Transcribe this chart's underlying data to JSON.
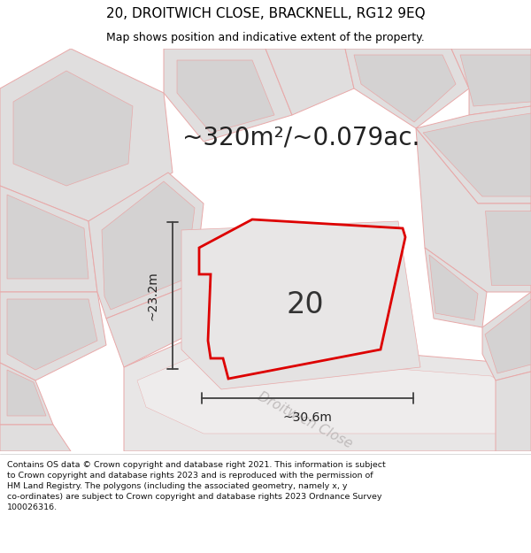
{
  "title_line1": "20, DROITWICH CLOSE, BRACKNELL, RG12 9EQ",
  "title_line2": "Map shows position and indicative extent of the property.",
  "area_text": "~320m²/~0.079ac.",
  "label_number": "20",
  "dim_width": "~30.6m",
  "dim_height": "~23.2m",
  "street_name": "Droitwich Close",
  "footer_lines": [
    "Contains OS data © Crown copyright and database right 2021. This information is subject to Crown copyright and database rights 2023 and is reproduced with the permission of",
    "HM Land Registry. The polygons (including the associated geometry, namely x, y co-ordinates) are subject to Crown copyright and database rights 2023 Ordnance Survey",
    "100026316."
  ],
  "map_bg": "#f2f0f0",
  "property_fill": "#e8e6e6",
  "property_outline": "#dd0000",
  "parcel_fill": "#e0dede",
  "parcel_fill2": "#d4d2d2",
  "parcel_edge": "#e8a8a8",
  "dim_color": "#404040",
  "street_color": "#c0bcbc",
  "title_fs": 11,
  "subtitle_fs": 9,
  "area_fs": 20,
  "label_fs": 24,
  "dim_fs": 10,
  "street_fs": 11,
  "footer_fs": 6.8
}
